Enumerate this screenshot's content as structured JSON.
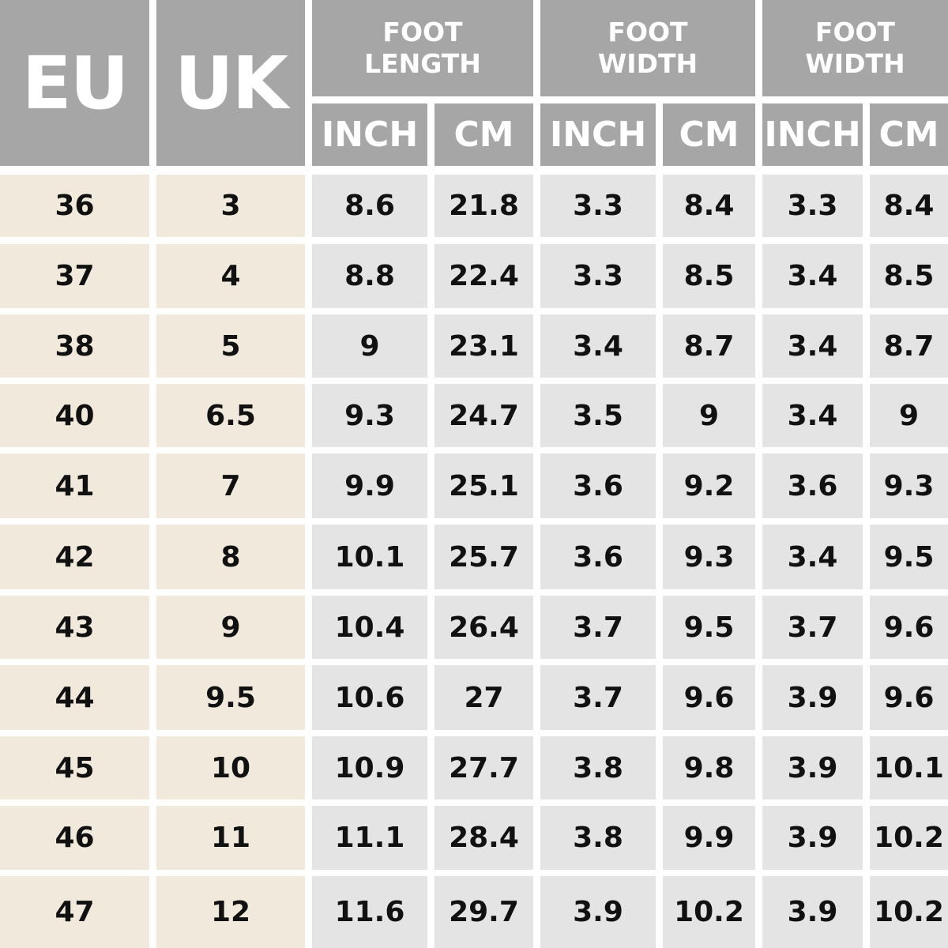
{
  "headers": {
    "eu": "EU",
    "uk": "UK",
    "groups": [
      {
        "line1": "FOOT",
        "line2": "LENGTH"
      },
      {
        "line1": "FOOT",
        "line2": "WIDTH"
      },
      {
        "line1": "FOOT",
        "line2": "WIDTH"
      }
    ],
    "units": [
      "INCH",
      "CM",
      "INCH",
      "CM",
      "INCH",
      "CM"
    ]
  },
  "rows": [
    [
      "36",
      "3",
      "8.6",
      "21.8",
      "3.3",
      "8.4",
      "3.3",
      "8.4"
    ],
    [
      "37",
      "4",
      "8.8",
      "22.4",
      "3.3",
      "8.5",
      "3.4",
      "8.5"
    ],
    [
      "38",
      "5",
      "9",
      "23.1",
      "3.4",
      "8.7",
      "3.4",
      "8.7"
    ],
    [
      "40",
      "6.5",
      "9.3",
      "24.7",
      "3.5",
      "9",
      "3.4",
      "9"
    ],
    [
      "41",
      "7",
      "9.9",
      "25.1",
      "3.6",
      "9.2",
      "3.6",
      "9.3"
    ],
    [
      "42",
      "8",
      "10.1",
      "25.7",
      "3.6",
      "9.3",
      "3.4",
      "9.5"
    ],
    [
      "43",
      "9",
      "10.4",
      "26.4",
      "3.7",
      "9.5",
      "3.7",
      "9.6"
    ],
    [
      "44",
      "9.5",
      "10.6",
      "27",
      "3.7",
      "9.6",
      "3.9",
      "9.6"
    ],
    [
      "45",
      "10",
      "10.9",
      "27.7",
      "3.8",
      "9.8",
      "3.9",
      "10.1"
    ],
    [
      "46",
      "11",
      "11.1",
      "28.4",
      "3.8",
      "9.9",
      "3.9",
      "10.2"
    ],
    [
      "47",
      "12",
      "11.6",
      "29.7",
      "3.9",
      "10.2",
      "3.9",
      "10.2"
    ]
  ],
  "colors": {
    "header_bg": "#a6a6a6",
    "header_text": "#ffffff",
    "size_column_bg": "#f0e9dc",
    "measure_column_bg": "#e4e4e4",
    "value_text": "#111111"
  }
}
